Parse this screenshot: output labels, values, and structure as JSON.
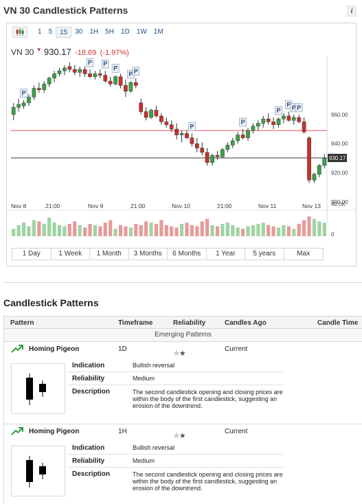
{
  "header": {
    "title": "VN 30 Candlestick Patterns",
    "info_icon": "info-icon"
  },
  "toolbar": {
    "chart_type_icon": "candlestick-icon",
    "timeframes": [
      "1",
      "5",
      "15",
      "30",
      "1H",
      "5H",
      "1D",
      "1W",
      "1M"
    ],
    "active_timeframe": "15"
  },
  "quote": {
    "symbol": "VN 30",
    "price": "930.17",
    "change": "-18.69",
    "change_pct": "(-1.97%)"
  },
  "ranges": [
    "1 Day",
    "1 Week",
    "1 Month",
    "3 Months",
    "6 Months",
    "1 Year",
    "5 years",
    "Max"
  ],
  "chart_data": {
    "type": "candlestick",
    "x_labels": [
      "Nov 8",
      "21:00",
      "Nov 9",
      "21:00",
      "Nov 10",
      "21:00",
      "Nov 11",
      "Nov 13"
    ],
    "y_ticks": [
      "960.00",
      "940.00",
      "920.00",
      "900.00"
    ],
    "ylim": [
      900,
      1000
    ],
    "volume_ticks": [
      "40.0K",
      "0"
    ],
    "last_price_label": "930.17",
    "red_line_value": 949.0,
    "pattern_marker_label": "P",
    "candles": [
      {
        "o": 960,
        "h": 968,
        "l": 956,
        "c": 965
      },
      {
        "o": 965,
        "h": 971,
        "l": 962,
        "c": 967
      },
      {
        "o": 966,
        "h": 970,
        "l": 964,
        "c": 968
      },
      {
        "o": 968,
        "h": 974,
        "l": 966,
        "c": 972
      },
      {
        "o": 972,
        "h": 980,
        "l": 970,
        "c": 978
      },
      {
        "o": 978,
        "h": 982,
        "l": 975,
        "c": 977
      },
      {
        "o": 977,
        "h": 983,
        "l": 975,
        "c": 981
      },
      {
        "o": 981,
        "h": 986,
        "l": 979,
        "c": 985
      },
      {
        "o": 985,
        "h": 990,
        "l": 982,
        "c": 988
      },
      {
        "o": 988,
        "h": 992,
        "l": 986,
        "c": 990
      },
      {
        "o": 990,
        "h": 994,
        "l": 987,
        "c": 992
      },
      {
        "o": 993,
        "h": 996,
        "l": 989,
        "c": 991
      },
      {
        "o": 991,
        "h": 994,
        "l": 987,
        "c": 989
      },
      {
        "o": 989,
        "h": 993,
        "l": 986,
        "c": 991
      },
      {
        "o": 991,
        "h": 993,
        "l": 986,
        "c": 988
      },
      {
        "o": 988,
        "h": 991,
        "l": 985,
        "c": 986
      },
      {
        "o": 986,
        "h": 990,
        "l": 984,
        "c": 988
      },
      {
        "o": 988,
        "h": 991,
        "l": 985,
        "c": 987
      },
      {
        "o": 987,
        "h": 990,
        "l": 982,
        "c": 983
      },
      {
        "o": 983,
        "h": 986,
        "l": 979,
        "c": 981
      },
      {
        "o": 981,
        "h": 987,
        "l": 980,
        "c": 986
      },
      {
        "o": 986,
        "h": 988,
        "l": 978,
        "c": 980
      },
      {
        "o": 980,
        "h": 984,
        "l": 972,
        "c": 976
      },
      {
        "o": 976,
        "h": 983,
        "l": 975,
        "c": 982
      },
      {
        "o": 982,
        "h": 985,
        "l": 978,
        "c": 980
      },
      {
        "o": 968,
        "h": 971,
        "l": 960,
        "c": 962
      },
      {
        "o": 962,
        "h": 965,
        "l": 956,
        "c": 958
      },
      {
        "o": 958,
        "h": 964,
        "l": 957,
        "c": 963
      },
      {
        "o": 963,
        "h": 966,
        "l": 958,
        "c": 959
      },
      {
        "o": 959,
        "h": 961,
        "l": 953,
        "c": 955
      },
      {
        "o": 955,
        "h": 958,
        "l": 951,
        "c": 953
      },
      {
        "o": 953,
        "h": 956,
        "l": 948,
        "c": 950
      },
      {
        "o": 950,
        "h": 954,
        "l": 943,
        "c": 946
      },
      {
        "o": 946,
        "h": 949,
        "l": 941,
        "c": 947
      },
      {
        "o": 947,
        "h": 949,
        "l": 943,
        "c": 944
      },
      {
        "o": 944,
        "h": 947,
        "l": 938,
        "c": 940
      },
      {
        "o": 940,
        "h": 944,
        "l": 934,
        "c": 937
      },
      {
        "o": 937,
        "h": 941,
        "l": 932,
        "c": 934
      },
      {
        "o": 934,
        "h": 937,
        "l": 925,
        "c": 927
      },
      {
        "o": 927,
        "h": 933,
        "l": 925,
        "c": 932
      },
      {
        "o": 932,
        "h": 935,
        "l": 929,
        "c": 931
      },
      {
        "o": 931,
        "h": 937,
        "l": 930,
        "c": 936
      },
      {
        "o": 936,
        "h": 941,
        "l": 934,
        "c": 939
      },
      {
        "o": 939,
        "h": 944,
        "l": 937,
        "c": 942
      },
      {
        "o": 942,
        "h": 948,
        "l": 940,
        "c": 946
      },
      {
        "o": 946,
        "h": 950,
        "l": 943,
        "c": 944
      },
      {
        "o": 944,
        "h": 951,
        "l": 942,
        "c": 949
      },
      {
        "o": 949,
        "h": 954,
        "l": 947,
        "c": 952
      },
      {
        "o": 952,
        "h": 956,
        "l": 949,
        "c": 954
      },
      {
        "o": 954,
        "h": 959,
        "l": 951,
        "c": 957
      },
      {
        "o": 957,
        "h": 961,
        "l": 953,
        "c": 955
      },
      {
        "o": 955,
        "h": 958,
        "l": 950,
        "c": 953
      },
      {
        "o": 953,
        "h": 958,
        "l": 951,
        "c": 957
      },
      {
        "o": 957,
        "h": 961,
        "l": 954,
        "c": 959
      },
      {
        "o": 959,
        "h": 962,
        "l": 955,
        "c": 956
      },
      {
        "o": 956,
        "h": 960,
        "l": 953,
        "c": 958
      },
      {
        "o": 958,
        "h": 960,
        "l": 954,
        "c": 955
      },
      {
        "o": 955,
        "h": 958,
        "l": 947,
        "c": 948
      },
      {
        "o": 944,
        "h": 945,
        "l": 913,
        "c": 915
      },
      {
        "o": 915,
        "h": 920,
        "l": 913,
        "c": 919
      },
      {
        "o": 919,
        "h": 926,
        "l": 917,
        "c": 925
      },
      {
        "o": 925,
        "h": 933,
        "l": 923,
        "c": 930
      }
    ],
    "volumes": [
      12,
      18,
      22,
      16,
      26,
      24,
      20,
      30,
      22,
      18,
      16,
      20,
      24,
      18,
      14,
      20,
      18,
      16,
      22,
      26,
      12,
      18,
      16,
      14,
      20,
      18,
      24,
      22,
      20,
      26,
      18,
      16,
      14,
      20,
      22,
      18,
      16,
      24,
      28,
      18,
      16,
      20,
      22,
      18,
      14,
      12,
      16,
      18,
      20,
      22,
      18,
      16,
      14,
      18,
      16,
      12,
      20,
      26,
      32,
      28,
      24,
      22
    ],
    "pattern_marker_count": 12
  },
  "section": {
    "title": "Candlestick Patterns"
  },
  "table": {
    "headers": [
      "Pattern",
      "Timeframe",
      "Reliability",
      "Candles Ago",
      "Candle Time"
    ],
    "group_label": "Emerging Patterns",
    "rows": [
      {
        "name": "Homing Pigeon",
        "timeframe": "1D",
        "reliability_stars": 2,
        "candles_ago": "Current",
        "indication_label": "Indication",
        "indication": "Bullish reversal",
        "reliability_label": "Reliability",
        "reliability": "Medium",
        "description_label": "Description",
        "description": "The second candlestick opening and closing prices are within the body of the first candlestick, suggesting an erosion of the downtrend."
      },
      {
        "name": "Homing Pigeon",
        "timeframe": "1H",
        "reliability_stars": 2,
        "candles_ago": "Current",
        "indication_label": "Indication",
        "indication": "Bullish reversal",
        "reliability_label": "Reliability",
        "reliability": "Medium",
        "description_label": "Description",
        "description": "The second candlestick opening and closing prices are within the body of the first candlestick, suggesting an erosion of the downtrend."
      }
    ]
  },
  "colors": {
    "up": "#3aa34a",
    "down": "#c9302c",
    "vol_up": "#9fd3a3",
    "vol_down": "#e79a9a",
    "red_line": "#e05050",
    "link": "#1a4f8b"
  }
}
